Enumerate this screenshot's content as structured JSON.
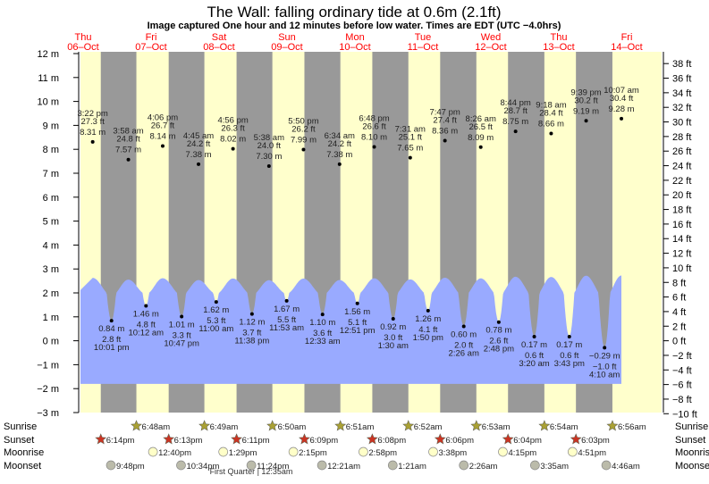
{
  "chart_data": {
    "type": "area",
    "title": "The Wall: falling  ordinary tide at 0.6m (2.1ft)",
    "subtitle": "Image captured One hour and 12 minutes before low water. Times are EDT (UTC −4.0hrs)",
    "days": [
      {
        "dow": "Thu",
        "date": "06–Oct"
      },
      {
        "dow": "Fri",
        "date": "07–Oct"
      },
      {
        "dow": "Sat",
        "date": "08–Oct"
      },
      {
        "dow": "Sun",
        "date": "09–Oct"
      },
      {
        "dow": "Mon",
        "date": "10–Oct"
      },
      {
        "dow": "Tue",
        "date": "11–Oct"
      },
      {
        "dow": "Wed",
        "date": "12–Oct"
      },
      {
        "dow": "Thu",
        "date": "13–Oct"
      },
      {
        "dow": "Fri",
        "date": "14–Oct"
      }
    ],
    "ylim_m": [
      -3,
      12
    ],
    "ylim_ft": [
      -10,
      38
    ],
    "left_ticks": [
      "12 m",
      "11 m",
      "10 m",
      "9 m",
      "8 m",
      "7 m",
      "6 m",
      "5 m",
      "4 m",
      "3 m",
      "2 m",
      "1 m",
      "0 m",
      "−1 m",
      "−2 m",
      "−3 m"
    ],
    "right_ticks": [
      "38 ft",
      "36 ft",
      "34 ft",
      "32 ft",
      "30 ft",
      "28 ft",
      "26 ft",
      "24 ft",
      "22 ft",
      "20 ft",
      "18 ft",
      "16 ft",
      "14 ft",
      "12 ft",
      "10 ft",
      "8 ft",
      "6 ft",
      "4 ft",
      "2 ft",
      "0 ft",
      "−2 ft",
      "−4 ft",
      "−6 ft",
      "−8 ft",
      "−10 ft"
    ],
    "tides": [
      {
        "day": 0,
        "time": "3:22 pm",
        "type": "high",
        "m": 8.31,
        "ft": "27.3 ft",
        "m_label": "8.31 m"
      },
      {
        "day": 0,
        "time": "10:01 pm",
        "type": "low",
        "m": 0.84,
        "ft": "2.8 ft",
        "m_label": "0.84 m"
      },
      {
        "day": 1,
        "time": "3:58 am",
        "type": "high",
        "m": 7.57,
        "ft": "24.8 ft",
        "m_label": "7.57 m"
      },
      {
        "day": 1,
        "time": "10:12 am",
        "type": "low",
        "m": 1.46,
        "ft": "4.8 ft",
        "m_label": "1.46 m"
      },
      {
        "day": 1,
        "time": "4:06 pm",
        "type": "high",
        "m": 8.14,
        "ft": "26.7 ft",
        "m_label": "8.14 m"
      },
      {
        "day": 1,
        "time": "10:47 pm",
        "type": "low",
        "m": 1.01,
        "ft": "3.3 ft",
        "m_label": "1.01 m"
      },
      {
        "day": 2,
        "time": "4:45 am",
        "type": "high",
        "m": 7.38,
        "ft": "24.2 ft",
        "m_label": "7.38 m"
      },
      {
        "day": 2,
        "time": "11:00 am",
        "type": "low",
        "m": 1.62,
        "ft": "5.3 ft",
        "m_label": "1.62 m"
      },
      {
        "day": 2,
        "time": "4:56 pm",
        "type": "high",
        "m": 8.02,
        "ft": "26.3 ft",
        "m_label": "8.02 m"
      },
      {
        "day": 2,
        "time": "11:38 pm",
        "type": "low",
        "m": 1.12,
        "ft": "3.7 ft",
        "m_label": "1.12 m"
      },
      {
        "day": 3,
        "time": "5:38 am",
        "type": "high",
        "m": 7.3,
        "ft": "24.0 ft",
        "m_label": "7.30 m"
      },
      {
        "day": 3,
        "time": "11:53 am",
        "type": "low",
        "m": 1.67,
        "ft": "5.5 ft",
        "m_label": "1.67 m"
      },
      {
        "day": 3,
        "time": "5:50 pm",
        "type": "high",
        "m": 7.99,
        "ft": "26.2 ft",
        "m_label": "7.99 m"
      },
      {
        "day": 4,
        "time": "12:33 am",
        "type": "low",
        "m": 1.1,
        "ft": "3.6 ft",
        "m_label": "1.10 m"
      },
      {
        "day": 4,
        "time": "6:34 am",
        "type": "high",
        "m": 7.38,
        "ft": "24.2 ft",
        "m_label": "7.38 m"
      },
      {
        "day": 4,
        "time": "12:51 pm",
        "type": "low",
        "m": 1.56,
        "ft": "5.1 ft",
        "m_label": "1.56 m"
      },
      {
        "day": 4,
        "time": "6:48 pm",
        "type": "high",
        "m": 8.1,
        "ft": "26.6 ft",
        "m_label": "8.10 m"
      },
      {
        "day": 5,
        "time": "1:30 am",
        "type": "low",
        "m": 0.92,
        "ft": "3.0 ft",
        "m_label": "0.92 m"
      },
      {
        "day": 5,
        "time": "7:31 am",
        "type": "high",
        "m": 7.65,
        "ft": "25.1 ft",
        "m_label": "7.65 m"
      },
      {
        "day": 5,
        "time": "1:50 pm",
        "type": "low",
        "m": 1.26,
        "ft": "4.1 ft",
        "m_label": "1.26 m"
      },
      {
        "day": 5,
        "time": "7:47 pm",
        "type": "high",
        "m": 8.36,
        "ft": "27.4 ft",
        "m_label": "8.36 m"
      },
      {
        "day": 6,
        "time": "2:26 am",
        "type": "low",
        "m": 0.6,
        "ft": "2.0 ft",
        "m_label": "0.60 m"
      },
      {
        "day": 6,
        "time": "8:26 am",
        "type": "high",
        "m": 8.09,
        "ft": "26.5 ft",
        "m_label": "8.09 m"
      },
      {
        "day": 6,
        "time": "2:48 pm",
        "type": "low",
        "m": 0.78,
        "ft": "2.6 ft",
        "m_label": "0.78 m"
      },
      {
        "day": 6,
        "time": "8:44 pm",
        "type": "high",
        "m": 8.75,
        "ft": "28.7 ft",
        "m_label": "8.75 m"
      },
      {
        "day": 7,
        "time": "3:20 am",
        "type": "low",
        "m": 0.17,
        "ft": "0.6 ft",
        "m_label": "0.17 m"
      },
      {
        "day": 7,
        "time": "9:18 am",
        "type": "high",
        "m": 8.66,
        "ft": "28.4 ft",
        "m_label": "8.66 m"
      },
      {
        "day": 7,
        "time": "3:43 pm",
        "type": "low",
        "m": 0.17,
        "ft": "0.6 ft",
        "m_label": "0.17 m"
      },
      {
        "day": 7,
        "time": "9:39 pm",
        "type": "high",
        "m": 9.19,
        "ft": "30.2 ft",
        "m_label": "9.19 m"
      },
      {
        "day": 8,
        "time": "4:10 am",
        "type": "low",
        "m": -0.29,
        "ft": "−1.0 ft",
        "m_label": "−0.29 m"
      },
      {
        "day": 8,
        "time": "10:07 am",
        "type": "high",
        "m": 9.28,
        "ft": "30.4 ft",
        "m_label": "9.28 m"
      }
    ],
    "rows": {
      "sunrise": {
        "label": "Sunrise",
        "events": [
          {
            "day": 1,
            "time": "6:48am"
          },
          {
            "day": 2,
            "time": "6:49am"
          },
          {
            "day": 3,
            "time": "6:50am"
          },
          {
            "day": 4,
            "time": "6:51am"
          },
          {
            "day": 5,
            "time": "6:52am"
          },
          {
            "day": 6,
            "time": "6:53am"
          },
          {
            "day": 7,
            "time": "6:54am"
          },
          {
            "day": 8,
            "time": "6:56am"
          }
        ]
      },
      "sunset": {
        "label": "Sunset",
        "events": [
          {
            "day": 0,
            "time": "6:14pm"
          },
          {
            "day": 1,
            "time": "6:13pm"
          },
          {
            "day": 2,
            "time": "6:11pm"
          },
          {
            "day": 3,
            "time": "6:09pm"
          },
          {
            "day": 4,
            "time": "6:08pm"
          },
          {
            "day": 5,
            "time": "6:06pm"
          },
          {
            "day": 6,
            "time": "6:04pm"
          },
          {
            "day": 7,
            "time": "6:03pm"
          }
        ]
      },
      "moonrise": {
        "label": "Moonrise",
        "events": [
          {
            "day": 1,
            "time": "12:40pm"
          },
          {
            "day": 2,
            "time": "1:29pm"
          },
          {
            "day": 3,
            "time": "2:15pm"
          },
          {
            "day": 4,
            "time": "2:58pm"
          },
          {
            "day": 5,
            "time": "3:38pm"
          },
          {
            "day": 6,
            "time": "4:15pm"
          },
          {
            "day": 7,
            "time": "4:51pm"
          }
        ]
      },
      "moonset": {
        "label": "Moonset",
        "events": [
          {
            "day": 0,
            "time": "9:48pm"
          },
          {
            "day": 1,
            "time": "10:34pm"
          },
          {
            "day": 2,
            "time": "11:24pm"
          },
          {
            "day": 4,
            "time": "12:21am"
          },
          {
            "day": 5,
            "time": "1:21am"
          },
          {
            "day": 6,
            "time": "2:26am"
          },
          {
            "day": 7,
            "time": "3:35am"
          },
          {
            "day": 8,
            "time": "4:46am"
          }
        ]
      }
    },
    "moon_phase": "First Quarter | 12:35am",
    "colors": {
      "day": "#ffffcc",
      "night": "#999999",
      "water": "#99aaff",
      "date": "#ff0000",
      "sunrise": "#aaa133",
      "sunset": "#cc3322",
      "moonrise": "#ffffc8",
      "moonset": "#bbbbaa"
    }
  }
}
